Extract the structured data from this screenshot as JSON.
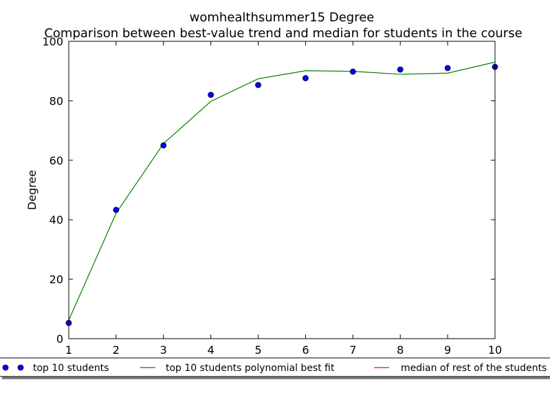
{
  "chart_data": {
    "type": "scatter",
    "title": "womhealthsummer15 Degree",
    "subtitle": "Comparison between best-value trend and median for students in the course",
    "xlabel": "",
    "ylabel": "Degree",
    "xlim": [
      1,
      10
    ],
    "ylim": [
      0,
      100
    ],
    "x_ticks": [
      "1",
      "2",
      "3",
      "4",
      "5",
      "6",
      "7",
      "8",
      "9",
      "10"
    ],
    "y_ticks": [
      "0",
      "20",
      "40",
      "60",
      "80",
      "100"
    ],
    "grid": false,
    "legend_position": "bottom",
    "series": [
      {
        "name": "top 10 students",
        "kind": "points",
        "color": "#0000ff",
        "x": [
          1,
          2,
          3,
          4,
          5,
          6,
          7,
          8,
          9,
          10
        ],
        "y": [
          5.3,
          43.3,
          65.0,
          82.0,
          85.3,
          87.6,
          89.8,
          90.5,
          91.0,
          91.4
        ]
      },
      {
        "name": "top 10 students polynomial best fit",
        "kind": "line",
        "color": "#008000",
        "x": [
          1,
          2,
          3,
          4,
          5,
          6,
          7,
          8,
          9,
          10
        ],
        "y": [
          6.2,
          42.2,
          65.6,
          79.8,
          87.4,
          90.1,
          89.9,
          88.9,
          89.3,
          93.0
        ]
      },
      {
        "name": "median of rest of the students",
        "kind": "line",
        "color": "#ff0000",
        "x": [],
        "y": []
      }
    ]
  }
}
